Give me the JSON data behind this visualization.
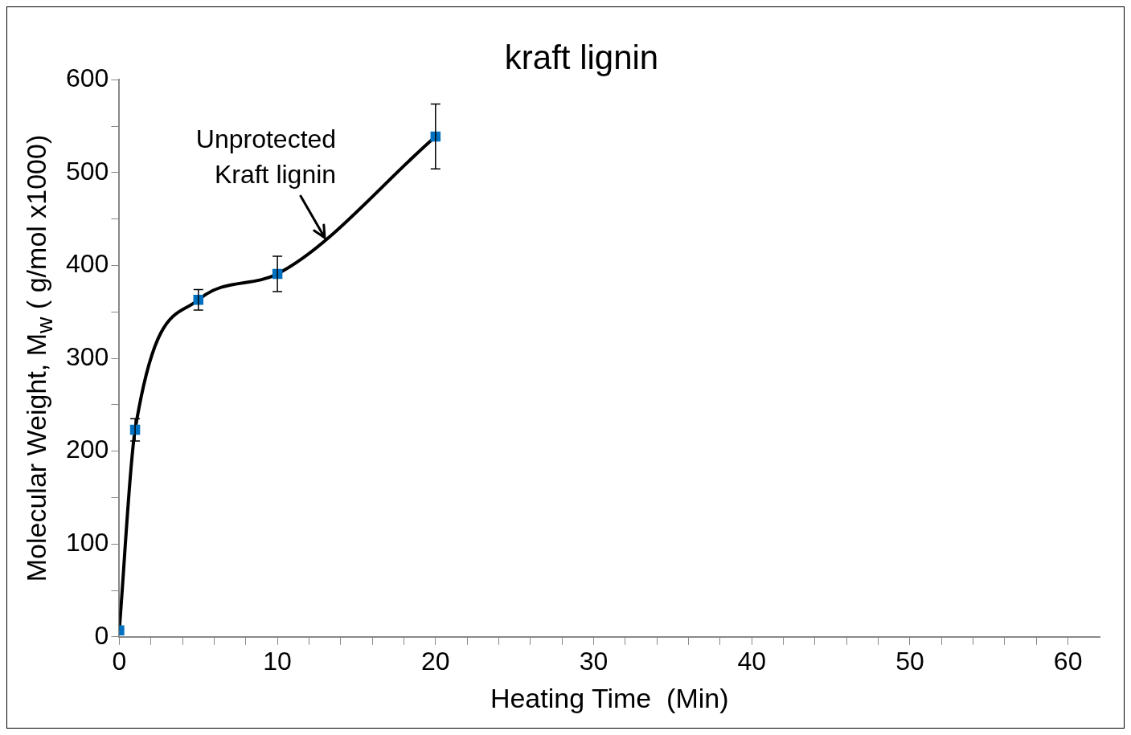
{
  "chart_data": {
    "type": "line",
    "title": "kraft lignin",
    "xlabel": "Heating Time  (Min)",
    "ylabel": "Molecular Weight, M$_{w}$ ( g/mol x1000)",
    "x": [
      0,
      1,
      5,
      10,
      20
    ],
    "series": [
      {
        "color": "#000000",
        "colors": [
          "#0070c0",
          "#0070c0",
          "#0070c0",
          "#0070c0",
          "#0070c0"
        ],
        "values": [
          7,
          223,
          363,
          391,
          539
        ],
        "errors": [
          null,
          12,
          11,
          19,
          35
        ]
      }
    ],
    "marker": "square",
    "line_style": "solid",
    "grid": false,
    "legend": false,
    "xlim": [
      0,
      62
    ],
    "ylim": [
      0,
      600
    ],
    "xticks": [
      0,
      {
        "value": 2,
        "label": null
      },
      {
        "value": 4,
        "label": null
      },
      {
        "value": 6,
        "label": null
      },
      {
        "value": 8,
        "label": null
      },
      10,
      {
        "value": 12,
        "label": null
      },
      {
        "value": 14,
        "label": null
      },
      {
        "value": 16,
        "label": null
      },
      {
        "value": 18,
        "label": null
      },
      20,
      {
        "value": 22,
        "label": null
      },
      {
        "value": 24,
        "label": null
      },
      {
        "value": 26,
        "label": null
      },
      {
        "value": 28,
        "label": null
      },
      30,
      {
        "value": 32,
        "label": null
      },
      {
        "value": 34,
        "label": null
      },
      {
        "value": 36,
        "label": null
      },
      {
        "value": 38,
        "label": null
      },
      40,
      {
        "value": 42,
        "label": null
      },
      {
        "value": 44,
        "label": null
      },
      {
        "value": 46,
        "label": null
      },
      {
        "value": 48,
        "label": null
      },
      50,
      {
        "value": 52,
        "label": null
      },
      {
        "value": 54,
        "label": null
      },
      {
        "value": 56,
        "label": null
      },
      {
        "value": 58,
        "label": null
      },
      60
    ],
    "yticks": [
      0,
      {
        "value": 50,
        "label": null
      },
      100,
      {
        "value": 150,
        "label": null
      },
      200,
      {
        "value": 250,
        "label": null
      },
      300,
      {
        "value": 350,
        "label": null
      },
      400,
      {
        "value": 450,
        "label": null
      },
      500,
      {
        "value": 550,
        "label": null
      },
      600
    ],
    "annotations": [
      {
        "text": "Unprotected Kraft lignin",
        "x": 13,
        "y": 430
      }
    ]
  }
}
